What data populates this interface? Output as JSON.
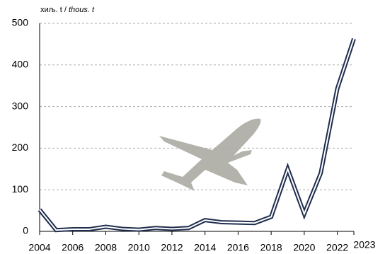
{
  "chart_data": {
    "type": "line",
    "unit_label": [
      "хиљ. t / ",
      "thous. t"
    ],
    "x": [
      2004,
      2005,
      2006,
      2007,
      2008,
      2009,
      2010,
      2011,
      2012,
      2013,
      2014,
      2015,
      2016,
      2017,
      2018,
      2019,
      2020,
      2021,
      2022,
      2023
    ],
    "series": [
      {
        "color": "#1f2d4e",
        "values": [
          52,
          3,
          5,
          5,
          11,
          6,
          4,
          8,
          6,
          8,
          27,
          22,
          21,
          20,
          35,
          150,
          42,
          140,
          343,
          463
        ]
      }
    ],
    "xlim": [
      2004,
      2023
    ],
    "xticks": [
      2004,
      2006,
      2008,
      2010,
      2012,
      2014,
      2016,
      2018,
      2020,
      2022,
      2023
    ],
    "ylim": [
      0,
      500
    ],
    "yticks": [
      0,
      100,
      200,
      300,
      400,
      500
    ],
    "grid": true
  }
}
